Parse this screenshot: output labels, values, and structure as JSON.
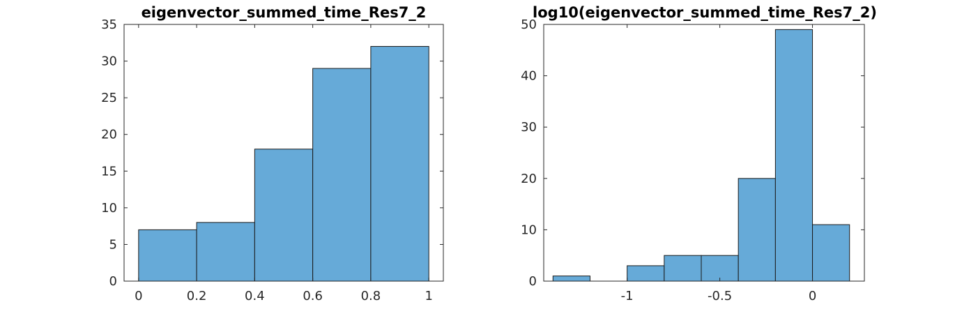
{
  "chart_data": [
    {
      "type": "bar",
      "title": "eigenvector_summed_time_Res7_2",
      "xlabel": "",
      "ylabel": "",
      "bin_edges": [
        0,
        0.2,
        0.4,
        0.6,
        0.8,
        1.0
      ],
      "values": [
        7,
        8,
        18,
        29,
        32
      ],
      "xlim": [
        -0.05,
        1.05
      ],
      "ylim": [
        0,
        35
      ],
      "xticks": [
        0,
        0.2,
        0.4,
        0.6,
        0.8,
        1
      ],
      "xtick_labels": [
        "0",
        "0.2",
        "0.4",
        "0.6",
        "0.8",
        "1"
      ],
      "yticks": [
        0,
        5,
        10,
        15,
        20,
        25,
        30,
        35
      ],
      "ytick_labels": [
        "0",
        "5",
        "10",
        "15",
        "20",
        "25",
        "30",
        "35"
      ],
      "grid": false,
      "bar_color": "#66aad8"
    },
    {
      "type": "bar",
      "title": "log10(eigenvector_summed_time_Res7_2)",
      "xlabel": "",
      "ylabel": "",
      "bin_edges": [
        -1.4,
        -1.2,
        -1.0,
        -0.8,
        -0.6,
        -0.4,
        -0.2,
        0.0,
        0.2
      ],
      "values": [
        1,
        0,
        3,
        5,
        5,
        20,
        49,
        11
      ],
      "xlim": [
        -1.45,
        0.28
      ],
      "ylim": [
        0,
        50
      ],
      "xticks": [
        -1,
        -0.5,
        0
      ],
      "xtick_labels": [
        "-1",
        "-0.5",
        "0"
      ],
      "yticks": [
        0,
        10,
        20,
        30,
        40,
        50
      ],
      "ytick_labels": [
        "0",
        "10",
        "20",
        "30",
        "40",
        "50"
      ],
      "grid": false,
      "bar_color": "#66aad8"
    }
  ]
}
